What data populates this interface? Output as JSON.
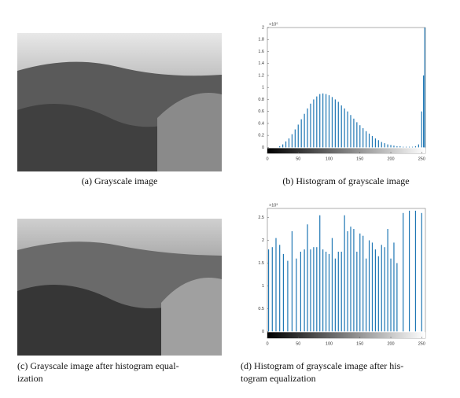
{
  "captions": {
    "a": [
      "(a) Grayscale image"
    ],
    "b": [
      "(b) Histogram of grayscale image"
    ],
    "c": [
      "(c) Grayscale image after histogram equal-",
      "ization"
    ],
    "d": [
      "(d) Histogram of grayscale image after his-",
      "togram equalization"
    ]
  },
  "chart_data": [
    {
      "type": "bar",
      "color": "#1f77b4",
      "exponent_label": "×10⁵",
      "x": [
        20,
        25,
        30,
        35,
        40,
        45,
        50,
        55,
        60,
        65,
        70,
        75,
        80,
        85,
        90,
        95,
        100,
        105,
        110,
        115,
        120,
        125,
        130,
        135,
        140,
        145,
        150,
        155,
        160,
        165,
        170,
        175,
        180,
        185,
        190,
        195,
        200,
        205,
        210,
        215,
        220,
        225,
        230,
        235,
        240,
        245,
        250,
        253,
        255
      ],
      "values": [
        0.02,
        0.05,
        0.1,
        0.15,
        0.22,
        0.3,
        0.38,
        0.47,
        0.56,
        0.65,
        0.73,
        0.8,
        0.85,
        0.89,
        0.9,
        0.89,
        0.87,
        0.84,
        0.8,
        0.76,
        0.7,
        0.65,
        0.6,
        0.54,
        0.48,
        0.42,
        0.37,
        0.32,
        0.27,
        0.23,
        0.19,
        0.15,
        0.12,
        0.09,
        0.07,
        0.05,
        0.04,
        0.03,
        0.02,
        0.02,
        0.01,
        0.01,
        0.01,
        0.01,
        0.02,
        0.05,
        0.6,
        1.2,
        2
      ],
      "xlim": [
        0,
        256
      ],
      "ylim": [
        -0.1,
        2
      ],
      "xticks": [
        0,
        50,
        100,
        150,
        200,
        250
      ],
      "yticks": [
        0,
        0.2,
        0.4,
        0.6,
        0.8,
        1,
        1.2,
        1.4,
        1.6,
        1.8,
        2
      ]
    },
    {
      "type": "bar",
      "color": "#1f77b4",
      "exponent_label": "×10³",
      "x": [
        2,
        8,
        14,
        20,
        26,
        33,
        40,
        47,
        54,
        60,
        65,
        70,
        75,
        80,
        85,
        90,
        95,
        100,
        105,
        110,
        115,
        120,
        125,
        130,
        135,
        140,
        145,
        150,
        155,
        160,
        165,
        170,
        175,
        180,
        185,
        190,
        195,
        200,
        205,
        210,
        220,
        230,
        240,
        250
      ],
      "values": [
        1.8,
        1.85,
        2.05,
        1.9,
        1.7,
        1.55,
        2.2,
        1.6,
        1.75,
        1.8,
        2.35,
        1.8,
        1.85,
        1.85,
        2.55,
        1.8,
        1.75,
        1.7,
        2.05,
        1.6,
        1.75,
        1.75,
        2.55,
        2.2,
        2.3,
        2.25,
        1.75,
        2.15,
        2.1,
        1.6,
        2.0,
        1.95,
        1.8,
        1.65,
        1.9,
        1.85,
        2.25,
        1.6,
        1.95,
        1.5,
        2.6,
        2.65,
        2.65,
        2.6
      ],
      "xlim": [
        0,
        256
      ],
      "ylim": [
        -0.15,
        2.7
      ],
      "xticks": [
        0,
        50,
        100,
        150,
        200,
        250
      ],
      "yticks": [
        0,
        0.5,
        1,
        1.5,
        2,
        2.5
      ]
    }
  ]
}
